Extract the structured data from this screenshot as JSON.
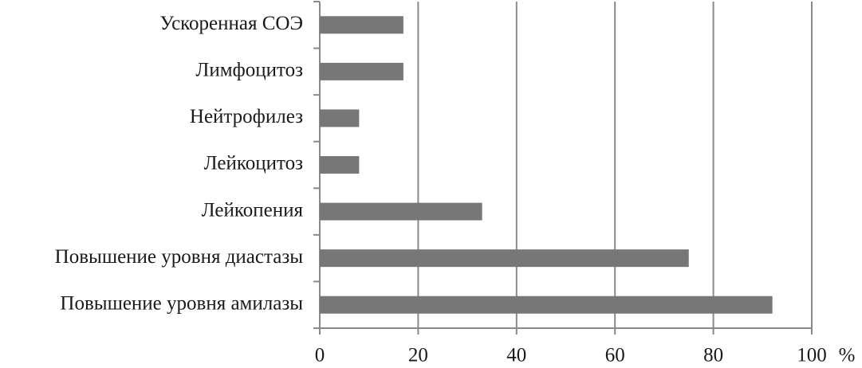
{
  "chart_data": {
    "type": "hbar",
    "categories": [
      "Ускоренная СОЭ",
      "Лимфоцитоз",
      "Нейтрофилез",
      "Лейкоцитоз",
      "Лейкопения",
      "Повышение уровня диастазы",
      "Повышение уровня амилазы"
    ],
    "values": [
      17,
      17,
      8,
      8,
      33,
      75,
      92
    ],
    "color": "#777777",
    "xlabel": "%",
    "xlim": [
      0,
      100
    ],
    "xticks": [
      0,
      20,
      40,
      60,
      80,
      100
    ],
    "grid": true
  }
}
